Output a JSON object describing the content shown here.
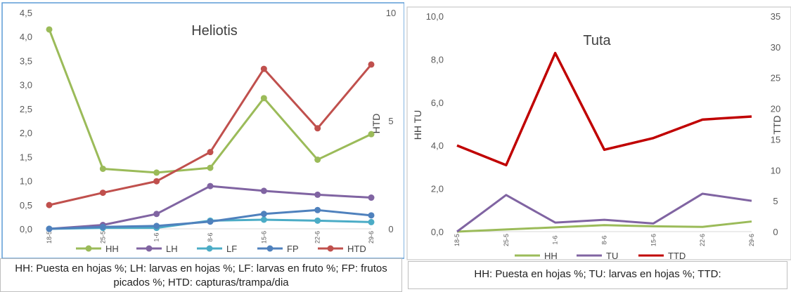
{
  "chart_data": [
    {
      "type": "line",
      "title": "Heliotis",
      "xlabel": "",
      "categories": [
        "18-5",
        "25-5",
        "1-6",
        "8-6",
        "15-6",
        "22-6",
        "29-6"
      ],
      "y_left": {
        "label": "",
        "lim": [
          0,
          4.5
        ],
        "ticks": [
          "0,0",
          "0,5",
          "1,0",
          "1,5",
          "2,0",
          "2,5",
          "3,0",
          "3,5",
          "4,0",
          "4,5"
        ]
      },
      "y_right": {
        "label": "HTD",
        "lim": [
          0,
          10
        ],
        "ticks": [
          "0",
          "5",
          "10"
        ]
      },
      "series": [
        {
          "name": "HH",
          "axis": "left",
          "color": "#9bbb59",
          "values": [
            4.15,
            1.25,
            1.17,
            1.27,
            2.72,
            1.44,
            1.97
          ]
        },
        {
          "name": "LH",
          "axis": "left",
          "color": "#8064a2",
          "values": [
            0.0,
            0.08,
            0.31,
            0.89,
            0.79,
            0.71,
            0.65
          ]
        },
        {
          "name": "LF",
          "axis": "left",
          "color": "#4bacc6",
          "values": [
            0.0,
            0.02,
            0.02,
            0.17,
            0.19,
            0.17,
            0.14
          ]
        },
        {
          "name": "FP",
          "axis": "left",
          "color": "#4f81bd",
          "values": [
            0.0,
            0.04,
            0.06,
            0.15,
            0.31,
            0.39,
            0.28
          ]
        },
        {
          "name": "HTD",
          "axis": "right",
          "color": "#c0504d",
          "values": [
            1.1,
            1.67,
            2.2,
            3.55,
            7.4,
            4.65,
            7.6
          ]
        }
      ],
      "legend": "bottom",
      "grid": false
    },
    {
      "type": "line",
      "title": "Tuta",
      "xlabel": "",
      "categories": [
        "18-5",
        "25-5",
        "1-6",
        "8-6",
        "15-6",
        "22-6",
        "29-6"
      ],
      "y_left": {
        "label": "HH  TU",
        "lim": [
          0,
          10
        ],
        "ticks": [
          "0,0",
          "2,0",
          "4,0",
          "6,0",
          "8,0",
          "10,0"
        ]
      },
      "y_right": {
        "label": "TTD",
        "lim": [
          0,
          35
        ],
        "ticks": [
          "0",
          "5",
          "10",
          "15",
          "20",
          "25",
          "30",
          "35"
        ]
      },
      "series": [
        {
          "name": "HH",
          "axis": "left",
          "color": "#9bbb59",
          "values": [
            0.0,
            0.1,
            0.2,
            0.3,
            0.25,
            0.22,
            0.47
          ]
        },
        {
          "name": "TU",
          "axis": "left",
          "color": "#8064a2",
          "values": [
            0.0,
            1.7,
            0.42,
            0.55,
            0.38,
            1.76,
            1.43
          ]
        },
        {
          "name": "TTD",
          "axis": "right",
          "color": "#c00000",
          "values": [
            14.0,
            10.8,
            29.0,
            13.3,
            15.2,
            18.2,
            18.7
          ]
        }
      ],
      "legend": "bottom",
      "grid": false
    }
  ],
  "captions": [
    "HH: Puesta en hojas %; LH: larvas en hojas %; LF: larvas en fruto %; FP: frutos picados %; HTD: capturas/trampa/dia",
    "HH: Puesta en hojas %; TU: larvas en hojas %; TTD:"
  ]
}
